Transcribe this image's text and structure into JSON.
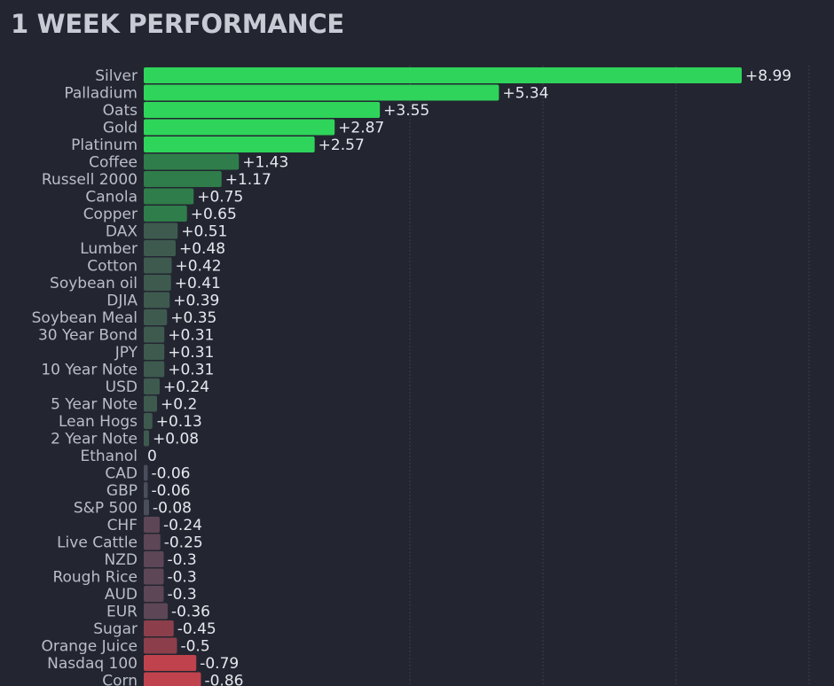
{
  "chart_data": {
    "type": "bar",
    "orientation": "horizontal",
    "title": "1 WEEK PERFORMANCE",
    "xlabel": "",
    "ylabel": "",
    "xlim": [
      -0.86,
      8.99
    ],
    "grid": true,
    "legend": "none",
    "categories": [
      "Silver",
      "Palladium",
      "Oats",
      "Gold",
      "Platinum",
      "Coffee",
      "Russell 2000",
      "Canola",
      "Copper",
      "DAX",
      "Lumber",
      "Cotton",
      "Soybean oil",
      "DJIA",
      "Soybean Meal",
      "30 Year Bond",
      "JPY",
      "10 Year Note",
      "USD",
      "5 Year Note",
      "Lean Hogs",
      "2 Year Note",
      "Ethanol",
      "CAD",
      "GBP",
      "S&P 500",
      "CHF",
      "Live Cattle",
      "NZD",
      "Rough Rice",
      "AUD",
      "EUR",
      "Sugar",
      "Orange Juice",
      "Nasdaq 100",
      "Corn"
    ],
    "values": [
      8.99,
      5.34,
      3.55,
      2.87,
      2.57,
      1.43,
      1.17,
      0.75,
      0.65,
      0.51,
      0.48,
      0.42,
      0.41,
      0.39,
      0.35,
      0.31,
      0.31,
      0.31,
      0.24,
      0.2,
      0.13,
      0.08,
      0,
      -0.06,
      -0.06,
      -0.08,
      -0.24,
      -0.25,
      -0.3,
      -0.3,
      -0.3,
      -0.36,
      -0.45,
      -0.5,
      -0.79,
      -0.86
    ],
    "value_labels": [
      "+8.99",
      "+5.34",
      "+3.55",
      "+2.87",
      "+2.57",
      "+1.43",
      "+1.17",
      "+0.75",
      "+0.65",
      "+0.51",
      "+0.48",
      "+0.42",
      "+0.41",
      "+0.39",
      "+0.35",
      "+0.31",
      "+0.31",
      "+0.31",
      "+0.24",
      "+0.2",
      "+0.13",
      "+0.08",
      "0",
      "-0.06",
      "-0.06",
      "-0.08",
      "-0.24",
      "-0.25",
      "-0.3",
      "-0.3",
      "-0.3",
      "-0.36",
      "-0.45",
      "-0.5",
      "-0.79",
      "-0.86"
    ],
    "colors": {
      "strong_positive": "#2fd45a",
      "positive": "#2f7d4a",
      "weak_positive": "#3e5a4f",
      "neutral": "#4a4e5c",
      "weak_negative": "#5d4656",
      "negative": "#8c3f4b",
      "strong_negative": "#c0424c"
    }
  }
}
